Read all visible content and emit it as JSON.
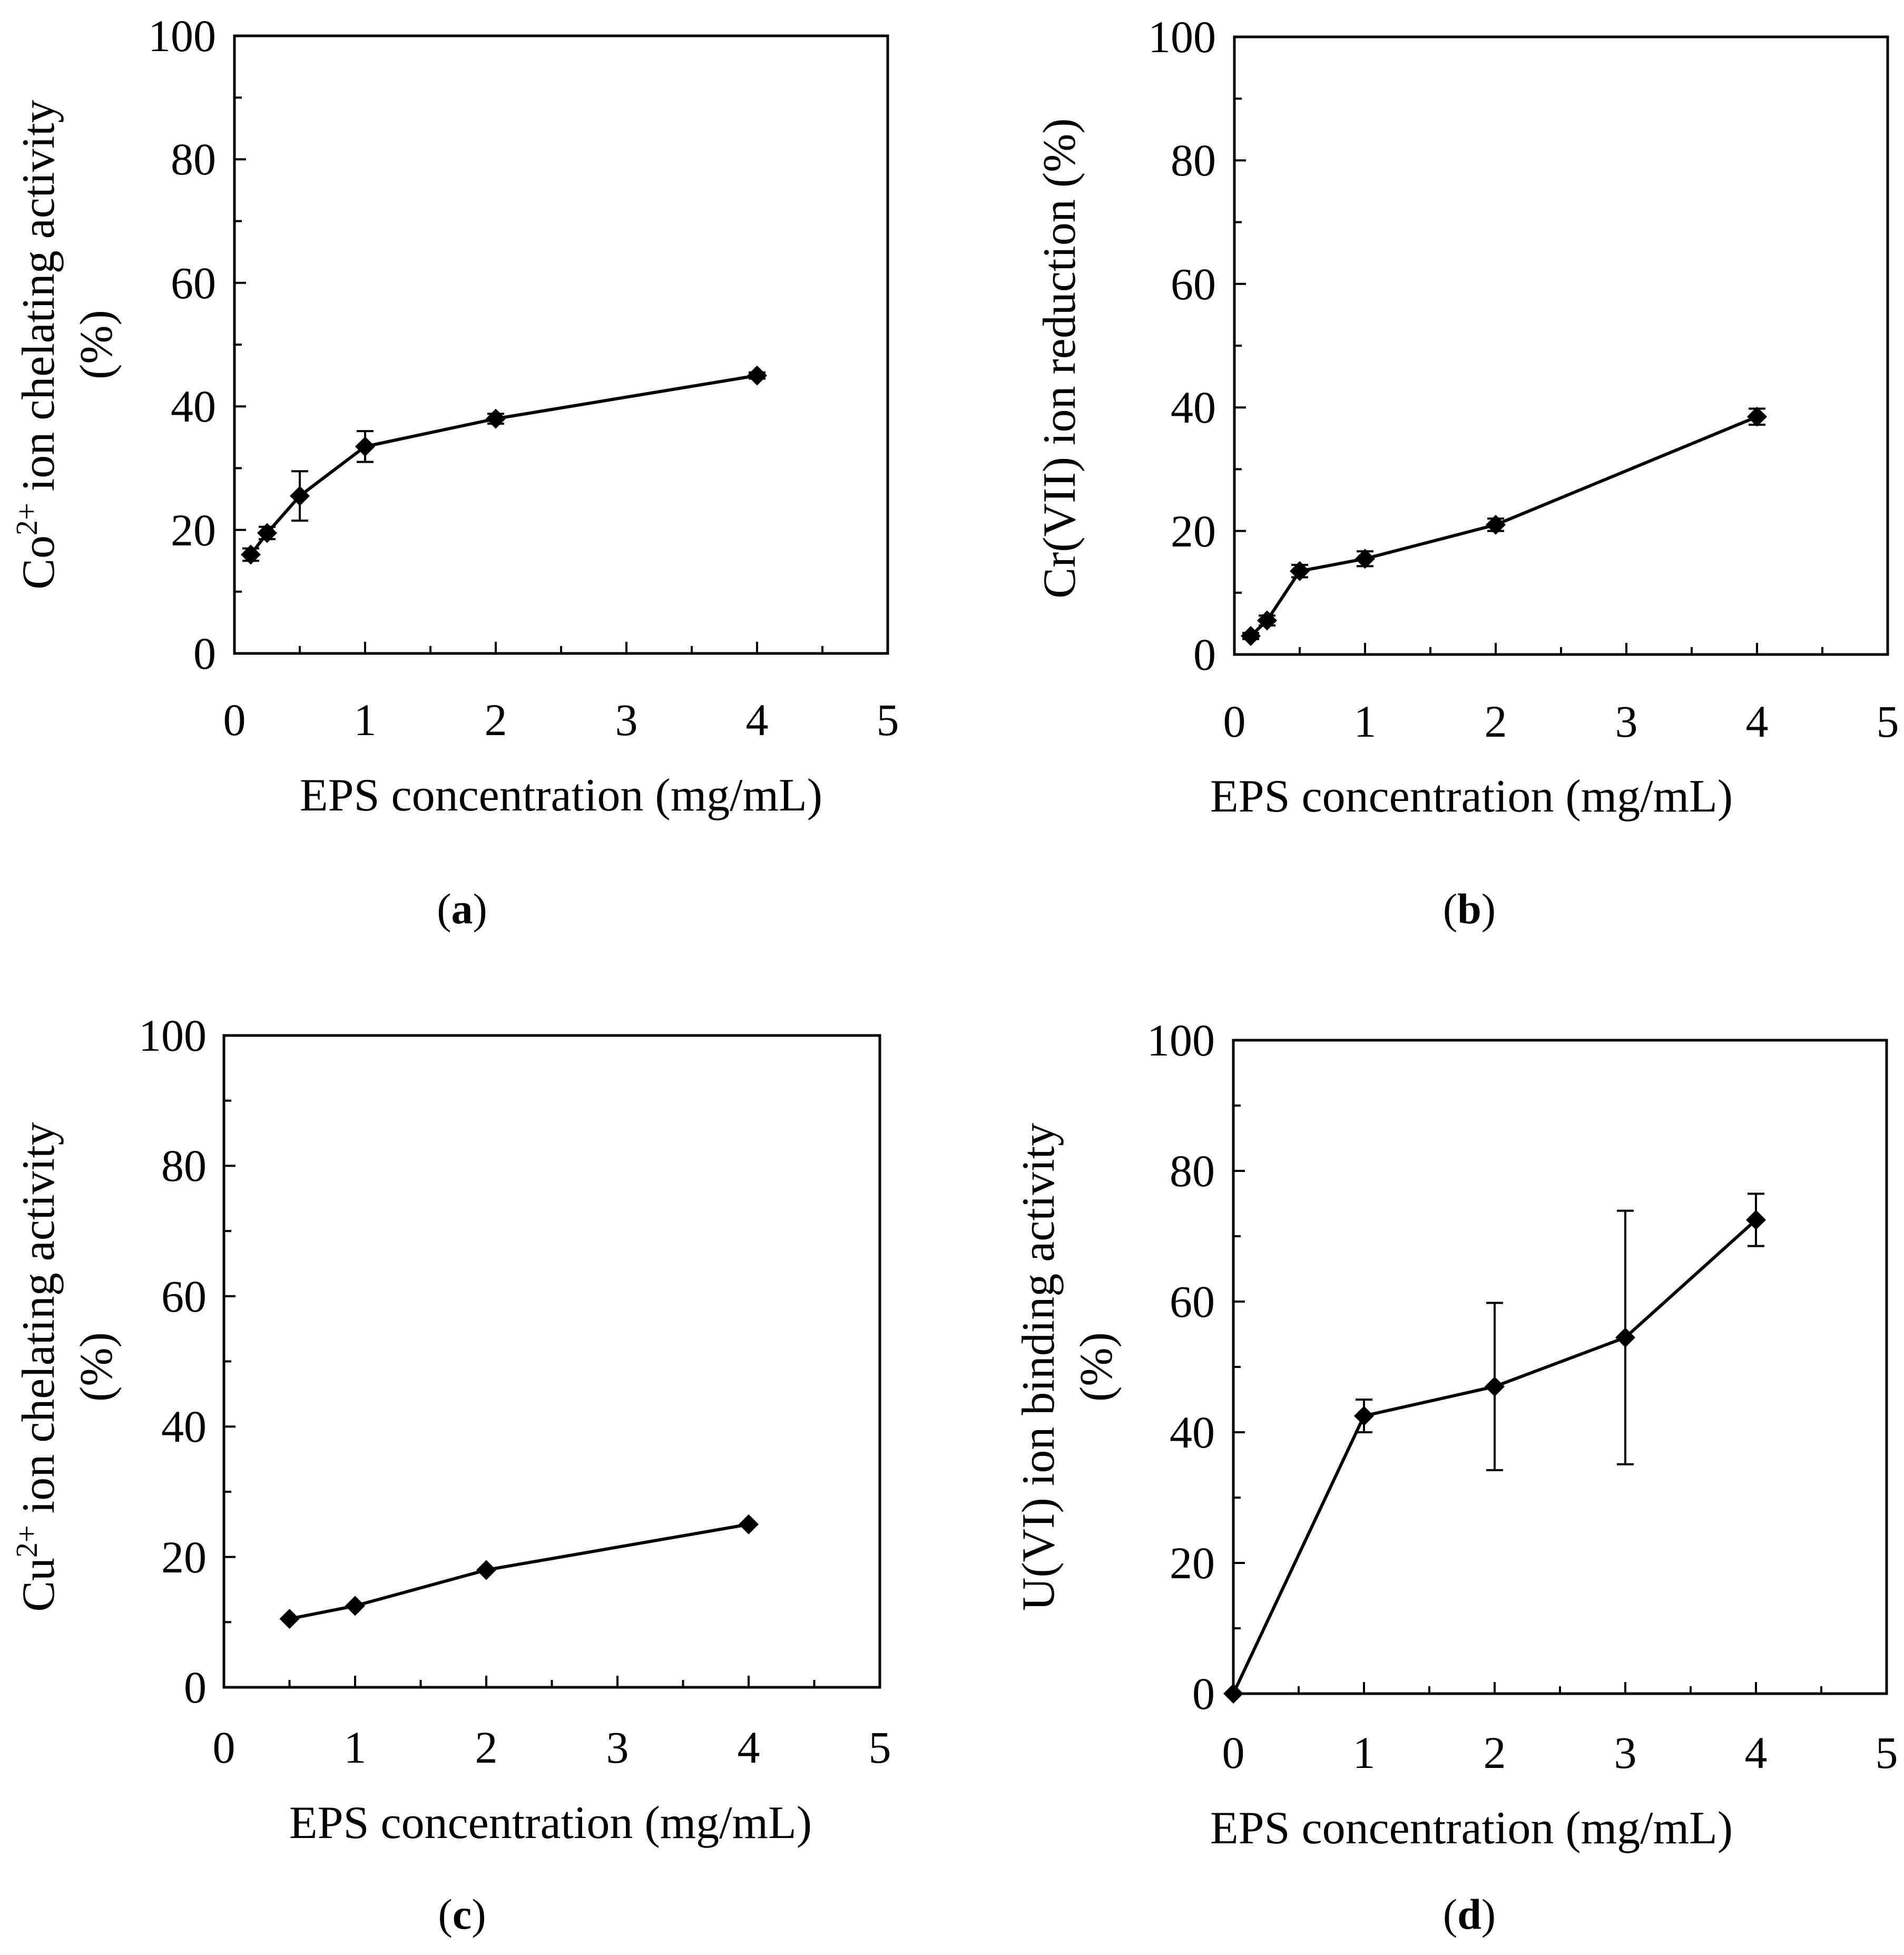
{
  "chart_data": [
    {
      "type": "line",
      "panel_label": "(a)",
      "panel_letter": "a",
      "ylabel_main": "Co",
      "ylabel_sup": "2+",
      "ylabel_rest": " ion chelating activity",
      "ylabel_line2": "(%)",
      "xlabel": "EPS concentration (mg/mL)",
      "xlim": [
        0,
        5
      ],
      "ylim": [
        0,
        100
      ],
      "xticks": [
        "0",
        "1",
        "2",
        "3",
        "4",
        "5"
      ],
      "yticks": [
        "0",
        "20",
        "40",
        "60",
        "80",
        "100"
      ],
      "series": [
        {
          "name": "Co2+ chelating",
          "x": [
            0.125,
            0.25,
            0.5,
            1,
            2,
            4
          ],
          "y": [
            16,
            19.5,
            25.5,
            33.5,
            38,
            45
          ],
          "err": [
            1,
            1,
            4,
            2.5,
            0.8,
            0.5
          ]
        }
      ]
    },
    {
      "type": "line",
      "panel_label": "(b)",
      "panel_letter": "b",
      "ylabel_main": "Cr(VII) ion reduction (%)",
      "ylabel_sup": "",
      "ylabel_rest": "",
      "ylabel_line2": "",
      "xlabel": "EPS concentration (mg/mL)",
      "xlim": [
        0,
        5
      ],
      "ylim": [
        0,
        100
      ],
      "xticks": [
        "0",
        "1",
        "2",
        "3",
        "4",
        "5"
      ],
      "yticks": [
        "0",
        "20",
        "40",
        "60",
        "80",
        "100"
      ],
      "series": [
        {
          "name": "Cr(VII) reduction",
          "x": [
            0.125,
            0.25,
            0.5,
            1,
            2,
            4
          ],
          "y": [
            3,
            5.5,
            13.5,
            15.5,
            21,
            38.5
          ],
          "err": [
            0.5,
            0.8,
            1,
            1.2,
            1,
            1.3
          ]
        }
      ]
    },
    {
      "type": "line",
      "panel_label": "(c)",
      "panel_letter": "c",
      "ylabel_main": "Cu",
      "ylabel_sup": "2+",
      "ylabel_rest": " ion chelating activity",
      "ylabel_line2": "(%)",
      "xlabel": "EPS concentration (mg/mL)",
      "xlim": [
        0,
        5
      ],
      "ylim": [
        0,
        100
      ],
      "xticks": [
        "0",
        "1",
        "2",
        "3",
        "4",
        "5"
      ],
      "yticks": [
        "0",
        "20",
        "40",
        "60",
        "80",
        "100"
      ],
      "series": [
        {
          "name": "Cu2+ chelating",
          "x": [
            0.5,
            1,
            2,
            4
          ],
          "y": [
            10.5,
            12.5,
            18,
            25
          ],
          "err": [
            0,
            0,
            0,
            0
          ]
        }
      ]
    },
    {
      "type": "line",
      "panel_label": "(d)",
      "panel_letter": "d",
      "ylabel_main": "U(VI) ion binding activity",
      "ylabel_sup": "",
      "ylabel_rest": "",
      "ylabel_line2": "(%)",
      "xlabel": "EPS concentration (mg/mL)",
      "xlim": [
        0,
        5
      ],
      "ylim": [
        0,
        100
      ],
      "xticks": [
        "0",
        "1",
        "2",
        "3",
        "4",
        "5"
      ],
      "yticks": [
        "0",
        "20",
        "40",
        "60",
        "80",
        "100"
      ],
      "series": [
        {
          "name": "U(VI) binding",
          "x": [
            0,
            1,
            2,
            3,
            4
          ],
          "y": [
            0,
            42.5,
            47,
            54.5,
            72.5
          ],
          "err": [
            0,
            2.5,
            12.8,
            19.4,
            4
          ]
        }
      ]
    }
  ]
}
